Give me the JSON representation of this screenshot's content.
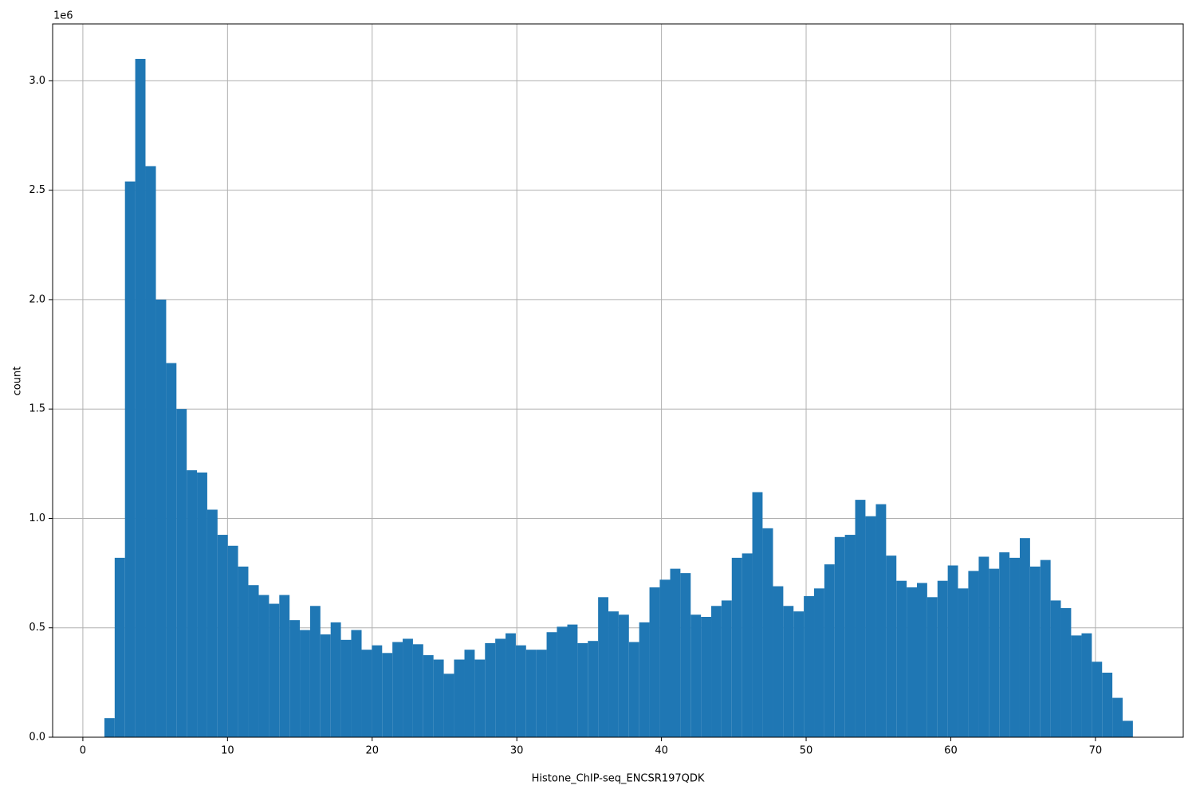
{
  "chart_data": {
    "type": "histogram",
    "xlabel": "Histone_ChIP-seq_ENCSR197QDK",
    "ylabel": "count",
    "y_offset_label": "1e6",
    "color": "#1f77b4",
    "grid": true,
    "bins": [
      1.49,
      2.2,
      2.91,
      3.62,
      4.33,
      5.05,
      5.76,
      6.47,
      7.18,
      7.89,
      8.6,
      9.31,
      10.02,
      10.73,
      11.44,
      12.16,
      12.87,
      13.58,
      14.29,
      15.0,
      15.71,
      16.42,
      17.13,
      17.84,
      18.55,
      19.27,
      19.98,
      20.69,
      21.4,
      22.11,
      22.82,
      23.53,
      24.24,
      24.95,
      25.66,
      26.38,
      27.09,
      27.8,
      28.51,
      29.22,
      29.93,
      30.64,
      31.35,
      32.06,
      32.77,
      33.49,
      34.2,
      34.91,
      35.62,
      36.33,
      37.04,
      37.75,
      38.46,
      39.17,
      39.88,
      40.6,
      41.31,
      42.02,
      42.73,
      43.44,
      44.15,
      44.86,
      45.57,
      46.28,
      46.99,
      47.71,
      48.42,
      49.13,
      49.84,
      50.55,
      51.26,
      51.97,
      52.68,
      53.39,
      54.1,
      54.82,
      55.53,
      56.24,
      56.95,
      57.66,
      58.37,
      59.08,
      59.79,
      60.5,
      61.21,
      61.93,
      62.64,
      63.35,
      64.06,
      64.77,
      65.48,
      66.19,
      66.9,
      67.61,
      68.32,
      69.04,
      69.75,
      70.46,
      71.17,
      71.88,
      72.59
    ],
    "values": [
      0.087,
      0.82,
      2.54,
      3.1,
      2.61,
      2.0,
      1.71,
      1.5,
      1.22,
      1.21,
      1.04,
      0.925,
      0.875,
      0.78,
      0.695,
      0.65,
      0.61,
      0.65,
      0.535,
      0.49,
      0.6,
      0.47,
      0.525,
      0.445,
      0.49,
      0.4,
      0.42,
      0.385,
      0.435,
      0.45,
      0.425,
      0.375,
      0.355,
      0.29,
      0.355,
      0.4,
      0.355,
      0.43,
      0.45,
      0.475,
      0.42,
      0.4,
      0.4,
      0.48,
      0.505,
      0.515,
      0.43,
      0.44,
      0.64,
      0.575,
      0.56,
      0.435,
      0.525,
      0.685,
      0.72,
      0.77,
      0.75,
      0.56,
      0.55,
      0.6,
      0.625,
      0.82,
      0.84,
      1.12,
      0.955,
      0.69,
      0.6,
      0.575,
      0.645,
      0.68,
      0.79,
      0.915,
      0.925,
      1.085,
      1.01,
      1.065,
      0.83,
      0.715,
      0.685,
      0.705,
      0.64,
      0.715,
      0.785,
      0.68,
      0.76,
      0.825,
      0.77,
      0.845,
      0.82,
      0.91,
      0.78,
      0.81,
      0.625,
      0.59,
      0.465,
      0.475,
      0.345,
      0.295,
      0.18,
      0.075
    ],
    "xlim": [
      -2.09,
      76.07
    ],
    "ylim": [
      0,
      3.26
    ],
    "xticks": [
      0,
      10,
      20,
      30,
      40,
      50,
      60,
      70
    ],
    "yticks": [
      {
        "value": 0,
        "label": "0.0"
      },
      0.5,
      {
        "value": 1,
        "label": "1.0"
      },
      1.5,
      {
        "value": 2,
        "label": "2.0"
      },
      2.5,
      {
        "value": 3,
        "label": "3.0"
      }
    ]
  }
}
